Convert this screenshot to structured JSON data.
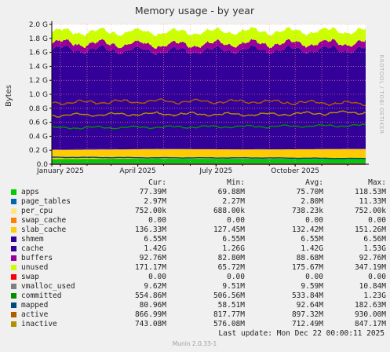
{
  "chart_data": {
    "type": "area",
    "title": "Memory usage - by year",
    "ylabel": "Bytes",
    "side_label": "RRDTOOL / TOBI OETIKER",
    "ylim": [
      0,
      2000000000
    ],
    "yticks": [
      {
        "v": 0,
        "label": "0.0"
      },
      {
        "v": 200000000,
        "label": "0.2 G"
      },
      {
        "v": 400000000,
        "label": "0.4 G"
      },
      {
        "v": 600000000,
        "label": "0.6 G"
      },
      {
        "v": 800000000,
        "label": "0.8 G"
      },
      {
        "v": 1000000000,
        "label": "1.0 G"
      },
      {
        "v": 1200000000,
        "label": "1.2 G"
      },
      {
        "v": 1400000000,
        "label": "1.4 G"
      },
      {
        "v": 1600000000,
        "label": "1.6 G"
      },
      {
        "v": 1800000000,
        "label": "1.8 G"
      },
      {
        "v": 2000000000,
        "label": "2.0 G"
      }
    ],
    "xrange": [
      "2024-12-22",
      "2025-12-22"
    ],
    "xticks": [
      {
        "date": "2025-01-01",
        "label": "January 2025"
      },
      {
        "date": "2025-04-01",
        "label": "April 2025"
      },
      {
        "date": "2025-07-01",
        "label": "July 2025"
      },
      {
        "date": "2025-10-01",
        "label": "October 2025"
      }
    ],
    "months": [
      "2025-01-01",
      "2025-02-01",
      "2025-03-01",
      "2025-04-01",
      "2025-05-01",
      "2025-06-01",
      "2025-07-01",
      "2025-08-01",
      "2025-09-01",
      "2025-10-01",
      "2025-11-01",
      "2025-12-01"
    ],
    "grid": true,
    "columns": [
      "Cur:",
      "Min:",
      "Avg:",
      "Max:"
    ],
    "series": [
      {
        "name": "apps",
        "color": "#00cc00",
        "kind": "stack",
        "cur": "77.39M",
        "min": "69.88M",
        "avg": "75.70M",
        "max": "118.53M",
        "values": [
          72000000,
          78000000,
          76000000,
          77000000
        ]
      },
      {
        "name": "page_tables",
        "color": "#0066b3",
        "kind": "stack",
        "cur": "2.97M",
        "min": "2.27M",
        "avg": "2.80M",
        "max": "11.33M",
        "values": [
          2800000,
          2900000,
          2800000,
          3000000
        ]
      },
      {
        "name": "per_cpu",
        "color": "#ffe680",
        "kind": "stack",
        "cur": "752.00k",
        "min": "688.00k",
        "avg": "738.23k",
        "max": "752.00k",
        "values": [
          700000,
          740000,
          740000,
          752000
        ]
      },
      {
        "name": "swap_cache",
        "color": "#ff8000",
        "kind": "stack",
        "cur": "0.00",
        "min": "0.00",
        "avg": "0.00",
        "max": "0.00",
        "values": [
          0,
          0,
          0,
          0
        ]
      },
      {
        "name": "slab_cache",
        "color": "#ffcc00",
        "kind": "stack",
        "cur": "136.33M",
        "min": "127.45M",
        "avg": "132.42M",
        "max": "151.26M",
        "values": [
          130000000,
          134000000,
          132000000,
          136000000
        ]
      },
      {
        "name": "shmem",
        "color": "#330099",
        "kind": "stack",
        "cur": "6.55M",
        "min": "6.55M",
        "avg": "6.55M",
        "max": "6.56M",
        "values": [
          6550000,
          6550000,
          6550000,
          6550000
        ]
      },
      {
        "name": "cache",
        "color": "#330099",
        "kind": "stack",
        "cur": "1.42G",
        "min": "1.26G",
        "avg": "1.42G",
        "max": "1.53G",
        "values": [
          1440000000,
          1400000000,
          1420000000,
          1420000000
        ]
      },
      {
        "name": "buffers",
        "color": "#990099",
        "kind": "stack",
        "cur": "92.76M",
        "min": "82.80M",
        "avg": "88.68M",
        "max": "92.76M",
        "values": [
          86000000,
          88000000,
          89000000,
          92760000
        ]
      },
      {
        "name": "unused",
        "color": "#ccff00",
        "kind": "stack",
        "cur": "171.17M",
        "min": "65.72M",
        "avg": "175.67M",
        "max": "347.19M",
        "values": [
          160000000,
          180000000,
          175000000,
          171000000
        ]
      },
      {
        "name": "swap",
        "color": "#ff0000",
        "kind": "line",
        "cur": "0.00",
        "min": "0.00",
        "avg": "0.00",
        "max": "0.00",
        "values": [
          0,
          0,
          0,
          0
        ]
      },
      {
        "name": "vmalloc_used",
        "color": "#808080",
        "kind": "line",
        "cur": "9.62M",
        "min": "9.51M",
        "avg": "9.59M",
        "max": "10.84M",
        "values": [
          9600000,
          9550000,
          9590000,
          9620000
        ]
      },
      {
        "name": "committed",
        "color": "#008f00",
        "kind": "line",
        "cur": "554.86M",
        "min": "506.56M",
        "avg": "533.84M",
        "max": "1.23G",
        "values": [
          520000000,
          530000000,
          540000000,
          554860000
        ]
      },
      {
        "name": "mapped",
        "color": "#00487d",
        "kind": "line",
        "cur": "80.96M",
        "min": "58.51M",
        "avg": "92.64M",
        "max": "182.63M",
        "values": [
          100000000,
          92000000,
          90000000,
          80960000
        ]
      },
      {
        "name": "active",
        "color": "#b35a00",
        "kind": "line",
        "cur": "866.99M",
        "min": "817.77M",
        "avg": "897.32M",
        "max": "930.00M",
        "values": [
          880000000,
          900000000,
          895000000,
          866990000
        ]
      },
      {
        "name": "inactive",
        "color": "#b38f00",
        "kind": "line",
        "cur": "743.08M",
        "min": "576.08M",
        "avg": "712.49M",
        "max": "847.17M",
        "values": [
          700000000,
          720000000,
          710000000,
          743080000
        ]
      }
    ]
  },
  "last_update": "Last update:  Mon Dec 22 00:00:11 2025",
  "footer": "Munin 2.0.33-1"
}
